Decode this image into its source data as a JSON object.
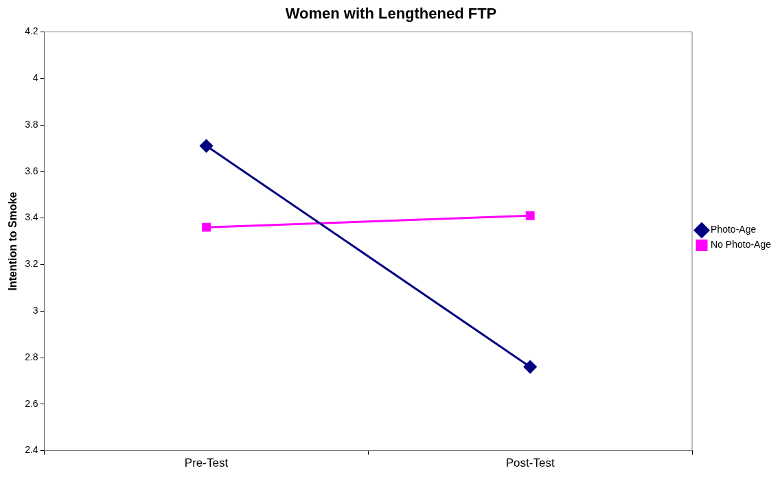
{
  "chart_data": {
    "type": "line",
    "title": "Women with Lengthened FTP",
    "ylabel": "Intention to Smoke",
    "categories": [
      "Pre-Test",
      "Post-Test"
    ],
    "series": [
      {
        "name": "Photo-Age",
        "color": "#000080",
        "values": [
          3.71,
          2.76
        ],
        "marker": "diamond"
      },
      {
        "name": "No Photo-Age",
        "color": "#ff00ff",
        "values": [
          3.36,
          3.41
        ],
        "marker": "square"
      }
    ],
    "ylim": [
      2.4,
      4.2
    ],
    "yticks": [
      2.4,
      2.6,
      2.8,
      3,
      3.2,
      3.4,
      3.6,
      3.8,
      4,
      4.2
    ],
    "grid": false,
    "legend": "right",
    "line_style": "solid"
  }
}
